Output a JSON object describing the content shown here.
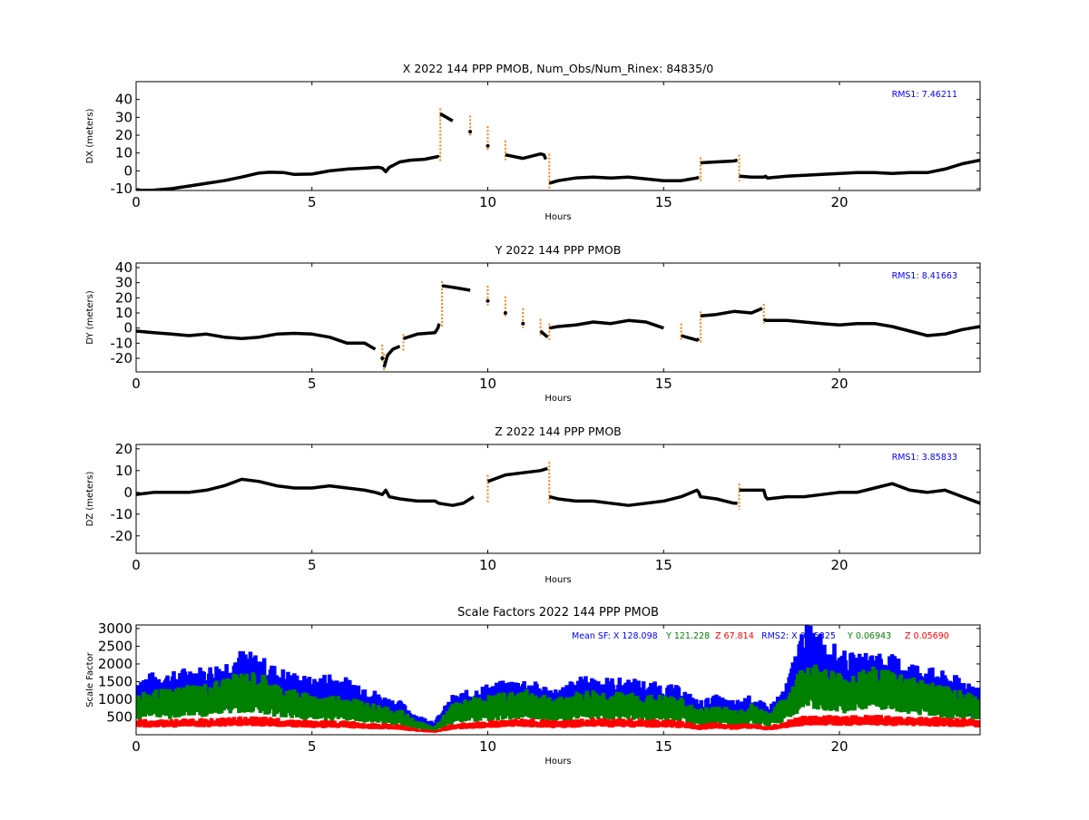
{
  "chart_data": [
    {
      "type": "scatter",
      "title": "X 2022 144 PPP  PMOB, Num_Obs/Num_Rinex: 84835/0",
      "xlabel": "Hours",
      "ylabel": "DX (meters)",
      "xlim": [
        0,
        24
      ],
      "ylim": [
        -11,
        50
      ],
      "xticks": [
        "0",
        "5",
        "10",
        "15",
        "20"
      ],
      "yticks": [
        "-10",
        "0",
        "10",
        "20",
        "30",
        "40"
      ],
      "annotation": "RMS1:  7.46211",
      "series": [
        {
          "color": "#000000",
          "x": [
            0,
            0.5,
            1,
            1.5,
            2,
            2.5,
            3,
            3.5,
            3.8,
            4.2,
            4.5,
            5,
            5.5,
            6,
            6.5,
            6.9,
            7.0,
            7.1,
            7.2,
            7.3,
            7.5,
            7.8,
            8.2,
            8.58,
            8.6,
            8.65,
            9,
            9.5,
            10,
            10.5,
            11,
            11.5,
            11.6,
            11.65,
            11.75,
            12,
            12.5,
            13,
            13.5,
            14,
            14.5,
            15,
            15.5,
            15.95,
            16.0,
            16.05,
            16.5,
            17.0,
            17.1,
            17.15,
            17.5,
            17.85,
            17.9,
            17.95,
            18.5,
            19,
            19.5,
            20,
            20.5,
            21,
            21.5,
            22,
            22.5,
            23,
            23.5,
            24
          ],
          "y": [
            -11,
            -10.8,
            -10,
            -8.5,
            -7,
            -5.5,
            -3.5,
            -1.2,
            -0.8,
            -1,
            -2,
            -1.8,
            0,
            1,
            1.5,
            2,
            1.5,
            -0.5,
            2,
            3,
            5,
            6,
            6.5,
            8,
            7.5,
            32,
            28,
            22,
            14,
            9,
            7,
            9.5,
            9,
            6.5,
            -7,
            -5.5,
            -4,
            -3.5,
            -4,
            -3.5,
            -4.5,
            -5.5,
            -5.5,
            -4,
            -3.5,
            4.5,
            5,
            5.5,
            6,
            -3,
            -3.5,
            -3.5,
            -3,
            -4,
            -3,
            -2.5,
            -2,
            -1.5,
            -1,
            -1,
            -1.5,
            -1,
            -1,
            1,
            4,
            6
          ]
        }
      ]
    },
    {
      "type": "scatter",
      "title": "Y 2022 144 PPP  PMOB",
      "xlabel": "Hours",
      "ylabel": "DY (meters)",
      "xlim": [
        0,
        24
      ],
      "ylim": [
        -29,
        43
      ],
      "xticks": [
        "0",
        "5",
        "10",
        "15",
        "20"
      ],
      "yticks": [
        "-20",
        "-10",
        "0",
        "10",
        "20",
        "30",
        "40"
      ],
      "annotation": "RMS1:  8.41663",
      "series": [
        {
          "color": "#000000",
          "x": [
            0,
            0.5,
            1,
            1.5,
            2,
            2.5,
            3,
            3.5,
            4,
            4.5,
            5,
            5.5,
            6,
            6.5,
            6.8,
            7.0,
            7.05,
            7.1,
            7.15,
            7.3,
            7.5,
            7.6,
            8,
            8.5,
            8.58,
            8.62,
            8.7,
            9,
            9.5,
            10,
            10.5,
            11,
            11.5,
            11.7,
            11.75,
            12,
            12.5,
            13,
            13.5,
            14,
            14.5,
            15,
            15.5,
            15.95,
            16.0,
            16.05,
            16.5,
            17,
            17.5,
            17.8,
            17.85,
            17.9,
            18.5,
            19,
            19.5,
            20,
            20.5,
            21,
            21.5,
            22,
            22.5,
            23,
            23.5,
            24
          ],
          "y": [
            -2,
            -3,
            -4,
            -5,
            -4,
            -6,
            -7,
            -6,
            -4,
            -3.5,
            -4,
            -6,
            -10,
            -10,
            -14,
            -20,
            -26,
            -22,
            -18,
            -14,
            -12,
            -7,
            -4,
            -3,
            0,
            3,
            28,
            27,
            25,
            18,
            10,
            3,
            -2,
            -6,
            0,
            1,
            2,
            4,
            3,
            5,
            4,
            0,
            -5,
            -8,
            -7,
            8,
            9,
            11,
            10,
            13,
            6,
            5,
            5,
            4,
            3,
            2,
            3,
            3,
            1,
            -2,
            -5,
            -4,
            -1,
            1
          ]
        }
      ]
    },
    {
      "type": "scatter",
      "title": "Z 2022 144 PPP  PMOB",
      "xlabel": "Hours",
      "ylabel": "DZ (meters)",
      "xlim": [
        0,
        24
      ],
      "ylim": [
        -28,
        22
      ],
      "xticks": [
        "0",
        "5",
        "10",
        "15",
        "20"
      ],
      "yticks": [
        "-20",
        "-10",
        "0",
        "10",
        "20"
      ],
      "annotation": "RMS1:  3.85833",
      "series": [
        {
          "color": "#000000",
          "x": [
            0,
            0.5,
            1,
            1.5,
            2,
            2.5,
            3,
            3.5,
            4,
            4.5,
            5,
            5.5,
            6,
            6.5,
            6.8,
            7.0,
            7.1,
            7.2,
            7.5,
            8,
            8.5,
            8.6,
            9,
            9.3,
            9.6,
            10,
            10.5,
            11,
            11.5,
            11.7,
            11.75,
            12,
            12.5,
            13,
            13.5,
            14,
            14.5,
            15,
            15.5,
            15.95,
            16.0,
            16.05,
            16.5,
            17.0,
            17.1,
            17.15,
            17.5,
            17.85,
            17.9,
            17.95,
            18.5,
            19,
            19.5,
            20,
            20.5,
            21,
            21.5,
            22,
            22.5,
            23,
            23.5,
            24
          ],
          "y": [
            -1,
            0,
            0,
            0,
            1,
            3,
            6,
            5,
            3,
            2,
            2,
            3,
            2,
            1,
            0,
            -1,
            1,
            -2,
            -3,
            -4,
            -4,
            -5,
            -6,
            -5,
            -2,
            5,
            8,
            9,
            10,
            11,
            -2,
            -3,
            -4,
            -4,
            -5,
            -6,
            -5,
            -4,
            -2,
            1,
            0,
            -2,
            -3,
            -5,
            -5,
            1,
            1,
            1,
            -2,
            -3,
            -2,
            -2,
            -1,
            0,
            0,
            2,
            4,
            1,
            0,
            1,
            -2,
            -5
          ]
        }
      ]
    },
    {
      "type": "scatter",
      "title": "Scale Factors 2022 144 PPP  PMOB",
      "xlabel": "Hours",
      "ylabel": "Scale Factor",
      "xlim": [
        0,
        24
      ],
      "ylim": [
        0,
        3100
      ],
      "xticks": [
        "0",
        "5",
        "10",
        "15",
        "20"
      ],
      "yticks": [
        "500",
        "1000",
        "1500",
        "2000",
        "2500",
        "3000"
      ],
      "annotation": {
        "mean_sf_label": "Mean SF: X 128.098",
        "mean_sf_y": "Y 121.228",
        "mean_sf_z": "Z  67.814",
        "rms2_label": "RMS2: X  0.05825",
        "rms2_y": "Y  0.06943",
        "rms2_z": "Z  0.05690"
      },
      "series": [
        {
          "name": "X",
          "color": "#0000ff",
          "x": [
            0,
            0.5,
            1,
            1.5,
            2,
            2.5,
            3,
            3.5,
            4,
            4.5,
            5,
            5.5,
            6,
            6.5,
            7,
            7.5,
            8,
            8.5,
            9,
            9.5,
            10,
            10.5,
            11,
            11.5,
            12,
            12.5,
            13,
            13.5,
            14,
            14.5,
            15,
            15.5,
            16,
            16.5,
            17,
            17.5,
            18,
            18.5,
            19,
            19.5,
            20,
            20.5,
            21,
            21.5,
            22,
            22.5,
            23,
            23.5,
            24
          ],
          "y": [
            1000,
            1100,
            1100,
            1200,
            1200,
            1300,
            1500,
            1400,
            1200,
            1100,
            1000,
            1100,
            1000,
            900,
            700,
            600,
            350,
            250,
            700,
            800,
            900,
            950,
            1000,
            900,
            800,
            1000,
            1050,
            1000,
            1000,
            950,
            900,
            850,
            600,
            700,
            600,
            700,
            500,
            900,
            2000,
            1800,
            1500,
            1400,
            1500,
            1400,
            1300,
            1200,
            1100,
            1000,
            900
          ]
        },
        {
          "name": "Y",
          "color": "#008000",
          "x": [
            0,
            0.5,
            1,
            1.5,
            2,
            2.5,
            3,
            3.5,
            4,
            4.5,
            5,
            5.5,
            6,
            6.5,
            7,
            7.5,
            8,
            8.5,
            9,
            9.5,
            10,
            10.5,
            11,
            11.5,
            12,
            12.5,
            13,
            13.5,
            14,
            14.5,
            15,
            15.5,
            16,
            16.5,
            17,
            17.5,
            18,
            18.5,
            19,
            19.5,
            20,
            20.5,
            21,
            21.5,
            22,
            22.5,
            23,
            23.5,
            24
          ],
          "y": [
            700,
            800,
            800,
            900,
            900,
            1000,
            1100,
            1100,
            900,
            800,
            700,
            700,
            700,
            600,
            500,
            450,
            250,
            150,
            550,
            650,
            700,
            750,
            800,
            750,
            650,
            750,
            800,
            750,
            750,
            700,
            700,
            650,
            450,
            550,
            450,
            550,
            400,
            700,
            1300,
            1200,
            1100,
            1100,
            1200,
            1150,
            1050,
            950,
            850,
            800,
            700
          ]
        },
        {
          "name": "Z",
          "color": "#ff0000",
          "x": [
            0,
            0.5,
            1,
            1.5,
            2,
            2.5,
            3,
            3.5,
            4,
            4.5,
            5,
            5.5,
            6,
            6.5,
            7,
            7.5,
            8,
            8.5,
            9,
            9.5,
            10,
            10.5,
            11,
            11.5,
            12,
            12.5,
            13,
            13.5,
            14,
            14.5,
            15,
            15.5,
            16,
            16.5,
            17,
            17.5,
            18,
            18.5,
            19,
            19.5,
            20,
            20.5,
            21,
            21.5,
            22,
            22.5,
            23,
            23.5,
            24
          ],
          "y": [
            300,
            300,
            300,
            320,
            320,
            330,
            350,
            350,
            330,
            300,
            280,
            280,
            270,
            250,
            220,
            200,
            120,
            80,
            220,
            250,
            280,
            300,
            320,
            300,
            270,
            300,
            320,
            310,
            310,
            300,
            300,
            280,
            200,
            250,
            200,
            250,
            180,
            280,
            380,
            380,
            380,
            380,
            380,
            370,
            360,
            350,
            340,
            330,
            300
          ]
        }
      ]
    }
  ],
  "colors": {
    "x_points": "#000000",
    "outliers": "#ff7f0e",
    "annotation_blue": "#0000ff",
    "sf_x": "#0000ff",
    "sf_y": "#008000",
    "sf_z": "#ff0000"
  }
}
